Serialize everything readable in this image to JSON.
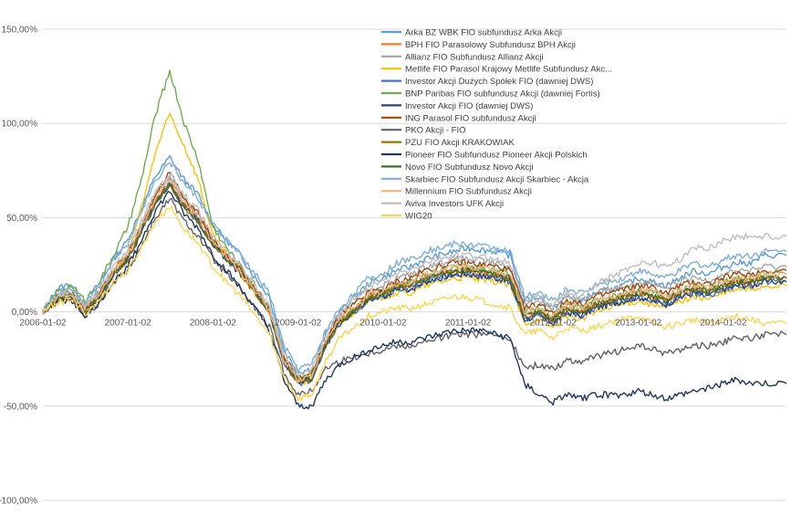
{
  "chart_data": {
    "type": "line",
    "title": "",
    "xlabel": "",
    "ylabel": "",
    "ylim": [
      -1.0,
      1.5
    ],
    "y_ticks": [
      "150,00%",
      "100,00%",
      "50,00%",
      "0,00%",
      "-50,00%",
      "-100,00%"
    ],
    "y_tick_values": [
      1.5,
      1.0,
      0.5,
      0.0,
      -0.5,
      -1.0
    ],
    "x_tick_labels": [
      "2006-01-02",
      "2007-01-02",
      "2008-01-02",
      "2009-01-02",
      "2010-01-02",
      "2011-01-02",
      "2012-01-02",
      "2013-01-02",
      "2014-01-02"
    ],
    "x_range": [
      "2006-01-02",
      "2014-09-30"
    ],
    "gridlines": "horizontal",
    "legend_position": "top-center",
    "x": [
      "2006-01-02",
      "2006-03-01",
      "2006-05-01",
      "2006-07-01",
      "2006-09-01",
      "2006-11-01",
      "2007-01-02",
      "2007-03-01",
      "2007-05-01",
      "2007-07-01",
      "2007-09-01",
      "2007-11-01",
      "2008-01-02",
      "2008-03-01",
      "2008-05-01",
      "2008-07-01",
      "2008-09-01",
      "2008-11-01",
      "2009-01-02",
      "2009-03-01",
      "2009-05-01",
      "2009-07-01",
      "2009-09-01",
      "2009-11-01",
      "2010-01-02",
      "2010-03-01",
      "2010-05-01",
      "2010-07-01",
      "2010-09-01",
      "2010-11-01",
      "2011-01-02",
      "2011-03-01",
      "2011-05-01",
      "2011-07-01",
      "2011-09-01",
      "2011-11-01",
      "2012-01-02",
      "2012-03-01",
      "2012-05-01",
      "2012-07-01",
      "2012-09-01",
      "2012-11-01",
      "2013-01-02",
      "2013-03-01",
      "2013-05-01",
      "2013-07-01",
      "2013-09-01",
      "2013-11-01",
      "2014-01-02",
      "2014-03-01",
      "2014-05-01",
      "2014-07-01",
      "2014-09-30"
    ],
    "series": [
      {
        "name": "Arka BZ WBK FIO subfundusz Arka Akcji",
        "color": "#5B9BD5",
        "values": [
          0,
          0.12,
          0.15,
          0.05,
          0.15,
          0.28,
          0.38,
          0.55,
          0.72,
          0.82,
          0.7,
          0.62,
          0.46,
          0.38,
          0.3,
          0.18,
          0.08,
          -0.2,
          -0.32,
          -0.3,
          -0.12,
          0.0,
          0.08,
          0.15,
          0.18,
          0.22,
          0.24,
          0.28,
          0.3,
          0.32,
          0.34,
          0.33,
          0.32,
          0.3,
          0.06,
          0.08,
          0.02,
          0.08,
          0.06,
          0.1,
          0.12,
          0.14,
          0.18,
          0.16,
          0.14,
          0.18,
          0.22,
          0.2,
          0.24,
          0.26,
          0.26,
          0.3,
          0.3
        ]
      },
      {
        "name": "BPH FIO Parasolowy Subfundusz BPH Akcji",
        "color": "#ED7D31",
        "values": [
          0,
          0.08,
          0.1,
          0.02,
          0.1,
          0.22,
          0.3,
          0.45,
          0.6,
          0.7,
          0.58,
          0.52,
          0.38,
          0.3,
          0.22,
          0.12,
          0.0,
          -0.25,
          -0.36,
          -0.34,
          -0.16,
          -0.04,
          0.02,
          0.08,
          0.1,
          0.14,
          0.14,
          0.18,
          0.2,
          0.22,
          0.22,
          0.21,
          0.2,
          0.18,
          -0.02,
          0.0,
          -0.04,
          0.02,
          0.0,
          0.04,
          0.06,
          0.08,
          0.1,
          0.08,
          0.06,
          0.1,
          0.12,
          0.11,
          0.14,
          0.16,
          0.16,
          0.18,
          0.18
        ]
      },
      {
        "name": "Allianz FIO Subfundusz Allianz Akcji",
        "color": "#A5A5A5",
        "values": [
          0,
          0.08,
          0.1,
          0.03,
          0.1,
          0.22,
          0.3,
          0.45,
          0.62,
          0.72,
          0.6,
          0.52,
          0.38,
          0.3,
          0.22,
          0.12,
          0.02,
          -0.24,
          -0.35,
          -0.33,
          -0.15,
          -0.02,
          0.05,
          0.12,
          0.14,
          0.18,
          0.2,
          0.24,
          0.26,
          0.28,
          0.28,
          0.27,
          0.26,
          0.24,
          0.04,
          0.06,
          0.02,
          0.08,
          0.06,
          0.1,
          0.12,
          0.14,
          0.16,
          0.15,
          0.12,
          0.16,
          0.18,
          0.17,
          0.2,
          0.22,
          0.22,
          0.24,
          0.24
        ]
      },
      {
        "name": "Metlife FIO Parasol Krajowy Metlife Subfundusz Akc...",
        "color": "#FFC000",
        "values": [
          0,
          0.06,
          0.08,
          0.0,
          0.08,
          0.2,
          0.32,
          0.55,
          0.85,
          1.05,
          0.88,
          0.7,
          0.4,
          0.3,
          0.2,
          0.1,
          0.0,
          -0.26,
          -0.38,
          -0.36,
          -0.18,
          -0.06,
          0.0,
          0.06,
          0.08,
          0.1,
          0.1,
          0.14,
          0.16,
          0.18,
          0.18,
          0.17,
          0.16,
          0.14,
          -0.06,
          -0.04,
          -0.08,
          -0.02,
          -0.04,
          0.0,
          0.02,
          0.04,
          0.06,
          0.04,
          0.02,
          0.06,
          0.08,
          0.07,
          0.1,
          0.12,
          0.12,
          0.14,
          0.14
        ]
      },
      {
        "name": "Investor Akcji Dużych Spółek FIO (dawniej DWS)",
        "color": "#4472C4",
        "values": [
          0,
          0.07,
          0.1,
          0.01,
          0.08,
          0.2,
          0.28,
          0.42,
          0.58,
          0.68,
          0.56,
          0.48,
          0.36,
          0.28,
          0.2,
          0.1,
          0.0,
          -0.26,
          -0.38,
          -0.36,
          -0.18,
          -0.06,
          0.0,
          0.06,
          0.08,
          0.12,
          0.12,
          0.16,
          0.18,
          0.2,
          0.2,
          0.19,
          0.18,
          0.16,
          -0.04,
          -0.02,
          -0.06,
          0.0,
          -0.02,
          0.02,
          0.04,
          0.06,
          0.08,
          0.06,
          0.04,
          0.08,
          0.1,
          0.09,
          0.12,
          0.14,
          0.14,
          0.16,
          0.16
        ]
      },
      {
        "name": "BNP Paribas FIO subfundusz Akcji (dawniej Fortis)",
        "color": "#70AD47",
        "values": [
          0,
          0.1,
          0.14,
          0.06,
          0.16,
          0.3,
          0.45,
          0.7,
          1.05,
          1.28,
          1.0,
          0.8,
          0.45,
          0.34,
          0.24,
          0.14,
          0.02,
          -0.24,
          -0.36,
          -0.34,
          -0.16,
          -0.04,
          0.02,
          0.08,
          0.1,
          0.14,
          0.16,
          0.2,
          0.22,
          0.24,
          0.24,
          0.23,
          0.22,
          0.2,
          0.0,
          0.02,
          -0.02,
          0.04,
          0.02,
          0.06,
          0.08,
          0.1,
          0.12,
          0.1,
          0.08,
          0.12,
          0.14,
          0.13,
          0.16,
          0.18,
          0.18,
          0.2,
          0.2
        ]
      },
      {
        "name": "Investor Akcji FIO (dawniej DWS)",
        "color": "#264478",
        "values": [
          0,
          0.07,
          0.09,
          0.01,
          0.08,
          0.2,
          0.28,
          0.42,
          0.58,
          0.68,
          0.56,
          0.48,
          0.36,
          0.28,
          0.2,
          0.1,
          0.0,
          -0.26,
          -0.38,
          -0.36,
          -0.18,
          -0.06,
          0.0,
          0.06,
          0.08,
          0.12,
          0.12,
          0.16,
          0.18,
          0.2,
          0.2,
          0.19,
          0.18,
          0.16,
          -0.04,
          -0.02,
          -0.06,
          0.0,
          -0.02,
          0.02,
          0.04,
          0.06,
          0.08,
          0.06,
          0.04,
          0.08,
          0.1,
          0.09,
          0.12,
          0.14,
          0.14,
          0.16,
          0.16
        ]
      },
      {
        "name": "ING Parasol FIO subfundusz Akcji",
        "color": "#9E480E",
        "values": [
          0,
          0.08,
          0.1,
          0.02,
          0.1,
          0.22,
          0.3,
          0.46,
          0.62,
          0.74,
          0.6,
          0.52,
          0.38,
          0.3,
          0.22,
          0.12,
          0.02,
          -0.24,
          -0.35,
          -0.33,
          -0.15,
          -0.02,
          0.04,
          0.1,
          0.12,
          0.16,
          0.18,
          0.22,
          0.24,
          0.26,
          0.26,
          0.25,
          0.24,
          0.22,
          0.02,
          0.04,
          0.0,
          0.06,
          0.04,
          0.08,
          0.1,
          0.12,
          0.14,
          0.13,
          0.1,
          0.14,
          0.16,
          0.15,
          0.18,
          0.2,
          0.2,
          0.22,
          0.22
        ]
      },
      {
        "name": "PKO Akcji - FIO",
        "color": "#636363",
        "values": [
          0,
          0.05,
          0.07,
          -0.02,
          0.05,
          0.16,
          0.22,
          0.35,
          0.5,
          0.6,
          0.48,
          0.4,
          0.28,
          0.2,
          0.12,
          0.02,
          -0.08,
          -0.32,
          -0.44,
          -0.42,
          -0.3,
          -0.26,
          -0.24,
          -0.22,
          -0.2,
          -0.18,
          -0.18,
          -0.16,
          -0.14,
          -0.12,
          -0.12,
          -0.12,
          -0.12,
          -0.14,
          -0.3,
          -0.28,
          -0.3,
          -0.26,
          -0.26,
          -0.24,
          -0.22,
          -0.2,
          -0.18,
          -0.2,
          -0.22,
          -0.2,
          -0.18,
          -0.18,
          -0.16,
          -0.14,
          -0.14,
          -0.12,
          -0.12
        ]
      },
      {
        "name": "PZU FIO Akcji KRAKOWIAK",
        "color": "#997300",
        "values": [
          0,
          0.07,
          0.09,
          0.01,
          0.08,
          0.2,
          0.28,
          0.43,
          0.58,
          0.68,
          0.56,
          0.48,
          0.36,
          0.28,
          0.2,
          0.1,
          0.0,
          -0.26,
          -0.37,
          -0.35,
          -0.17,
          -0.05,
          0.01,
          0.07,
          0.1,
          0.14,
          0.14,
          0.18,
          0.2,
          0.22,
          0.22,
          0.21,
          0.2,
          0.18,
          -0.02,
          0.0,
          -0.04,
          0.02,
          0.0,
          0.04,
          0.06,
          0.08,
          0.1,
          0.08,
          0.06,
          0.1,
          0.12,
          0.11,
          0.14,
          0.16,
          0.16,
          0.18,
          0.18
        ]
      },
      {
        "name": "Pioneer FIO Subfundusz Pioneer Akcji Polskich",
        "color": "#203864",
        "values": [
          0,
          0.05,
          0.07,
          -0.02,
          0.05,
          0.16,
          0.24,
          0.38,
          0.54,
          0.64,
          0.52,
          0.44,
          0.3,
          0.22,
          0.12,
          0.02,
          -0.1,
          -0.36,
          -0.5,
          -0.5,
          -0.36,
          -0.28,
          -0.24,
          -0.2,
          -0.18,
          -0.16,
          -0.16,
          -0.14,
          -0.12,
          -0.1,
          -0.1,
          -0.1,
          -0.12,
          -0.14,
          -0.38,
          -0.44,
          -0.48,
          -0.44,
          -0.46,
          -0.44,
          -0.44,
          -0.44,
          -0.42,
          -0.44,
          -0.46,
          -0.44,
          -0.42,
          -0.4,
          -0.38,
          -0.36,
          -0.38,
          -0.38,
          -0.38
        ]
      },
      {
        "name": "Novo FIO Subfundusz Novo Akcji",
        "color": "#43682B",
        "values": [
          0,
          0.07,
          0.09,
          0.01,
          0.08,
          0.2,
          0.28,
          0.43,
          0.58,
          0.68,
          0.56,
          0.48,
          0.36,
          0.28,
          0.2,
          0.1,
          0.0,
          -0.26,
          -0.37,
          -0.35,
          -0.17,
          -0.05,
          0.01,
          0.07,
          0.1,
          0.14,
          0.14,
          0.18,
          0.2,
          0.22,
          0.22,
          0.21,
          0.2,
          0.18,
          -0.02,
          0.0,
          -0.04,
          0.02,
          0.0,
          0.04,
          0.06,
          0.08,
          0.1,
          0.08,
          0.06,
          0.1,
          0.12,
          0.11,
          0.14,
          0.16,
          0.16,
          0.18,
          0.18
        ]
      },
      {
        "name": "Skarbiec FIO Subfundusz Akcji Skarbiec - Akcja",
        "color": "#7CAFDD",
        "values": [
          0,
          0.1,
          0.13,
          0.05,
          0.14,
          0.28,
          0.36,
          0.54,
          0.7,
          0.8,
          0.68,
          0.6,
          0.46,
          0.38,
          0.3,
          0.2,
          0.1,
          -0.18,
          -0.3,
          -0.28,
          -0.1,
          0.02,
          0.1,
          0.18,
          0.2,
          0.26,
          0.28,
          0.32,
          0.34,
          0.36,
          0.36,
          0.35,
          0.34,
          0.32,
          0.08,
          0.1,
          0.06,
          0.12,
          0.1,
          0.14,
          0.16,
          0.18,
          0.22,
          0.2,
          0.18,
          0.22,
          0.26,
          0.24,
          0.28,
          0.3,
          0.3,
          0.32,
          0.32
        ]
      },
      {
        "name": "Millennium FIO Subfundusz Akcji",
        "color": "#F4B183",
        "values": [
          0,
          0.08,
          0.1,
          0.02,
          0.1,
          0.22,
          0.3,
          0.45,
          0.6,
          0.7,
          0.58,
          0.5,
          0.37,
          0.29,
          0.21,
          0.11,
          0.01,
          -0.25,
          -0.36,
          -0.34,
          -0.16,
          -0.03,
          0.03,
          0.09,
          0.11,
          0.15,
          0.16,
          0.2,
          0.22,
          0.24,
          0.24,
          0.23,
          0.22,
          0.2,
          0.0,
          0.02,
          -0.02,
          0.04,
          0.02,
          0.06,
          0.08,
          0.1,
          0.12,
          0.11,
          0.08,
          0.12,
          0.14,
          0.13,
          0.16,
          0.18,
          0.18,
          0.2,
          0.2
        ]
      },
      {
        "name": "Aviva Investors UFK Akcji",
        "color": "#BFBFBF",
        "values": [
          0,
          0.08,
          0.11,
          0.03,
          0.11,
          0.24,
          0.32,
          0.48,
          0.64,
          0.74,
          0.62,
          0.54,
          0.4,
          0.32,
          0.24,
          0.14,
          0.04,
          -0.22,
          -0.33,
          -0.31,
          -0.12,
          0.0,
          0.07,
          0.14,
          0.16,
          0.2,
          0.22,
          0.26,
          0.28,
          0.3,
          0.3,
          0.29,
          0.28,
          0.26,
          0.06,
          0.08,
          0.04,
          0.1,
          0.08,
          0.14,
          0.18,
          0.22,
          0.26,
          0.26,
          0.24,
          0.28,
          0.34,
          0.34,
          0.38,
          0.4,
          0.4,
          0.4,
          0.4
        ]
      },
      {
        "name": "WIG20",
        "color": "#FFD54F",
        "values": [
          0,
          0.05,
          0.07,
          -0.01,
          0.06,
          0.16,
          0.22,
          0.34,
          0.48,
          0.56,
          0.44,
          0.36,
          0.24,
          0.16,
          0.08,
          -0.02,
          -0.12,
          -0.34,
          -0.46,
          -0.44,
          -0.26,
          -0.14,
          -0.08,
          -0.02,
          0.0,
          0.02,
          0.02,
          0.04,
          0.06,
          0.08,
          0.08,
          0.06,
          0.04,
          0.02,
          -0.12,
          -0.1,
          -0.14,
          -0.08,
          -0.1,
          -0.08,
          -0.06,
          -0.04,
          -0.02,
          -0.06,
          -0.08,
          -0.06,
          -0.04,
          -0.06,
          -0.04,
          -0.02,
          -0.04,
          -0.06,
          -0.06
        ]
      }
    ]
  }
}
